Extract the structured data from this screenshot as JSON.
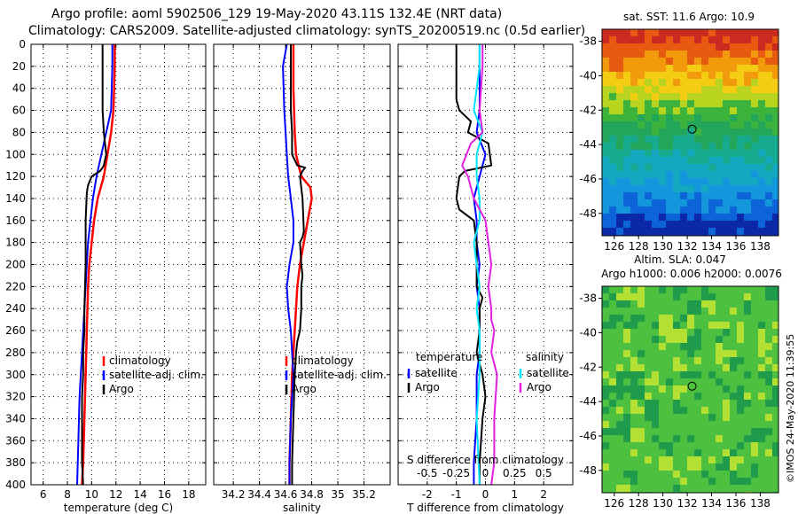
{
  "header": {
    "line1": "Argo profile: aoml 5902506_129 19-May-2020 43.11S 132.4E (NRT data)",
    "line2": "Climatology: CARS2009. Satellite-adjusted climatology: synTS_20200519.nc (0.5d earlier)"
  },
  "side": {
    "vertical_text": "©IMOS 24-May-2020 11:39:55"
  },
  "colors": {
    "climatology": "#ff0000",
    "satellite": "#0000ff",
    "argo": "#000000",
    "sal_satellite": "#00e5ff",
    "sal_argo": "#e020e0"
  },
  "chart_data": [
    {
      "type": "line",
      "id": "temperature",
      "xlabel": "temperature (deg C)",
      "ylabel": "depth",
      "xlim": [
        5,
        19.4
      ],
      "ylim": [
        400,
        0
      ],
      "xticks": [
        6,
        8,
        10,
        12,
        14,
        16,
        18
      ],
      "yticks": [
        0,
        20,
        40,
        60,
        80,
        100,
        120,
        140,
        160,
        180,
        200,
        220,
        240,
        260,
        280,
        300,
        320,
        340,
        360,
        380,
        400
      ],
      "grid": true,
      "legend": [
        {
          "label": "climatology",
          "color": "#ff0000"
        },
        {
          "label": "satellite-adj. clim.",
          "color": "#0000ff"
        },
        {
          "label": "Argo",
          "color": "#000000"
        }
      ],
      "series": [
        {
          "name": "climatology",
          "color": "#ff0000",
          "x": [
            11.9,
            11.9,
            11.8,
            11.6,
            11.3,
            11.0,
            10.5,
            10.2,
            10.0,
            9.8,
            9.7,
            9.6,
            9.5,
            9.4,
            9.3,
            9.2
          ],
          "y": [
            0,
            20,
            60,
            80,
            100,
            120,
            140,
            160,
            180,
            200,
            220,
            260,
            300,
            340,
            380,
            400
          ]
        },
        {
          "name": "satellite-adj. clim.",
          "color": "#0000ff",
          "x": [
            11.7,
            11.7,
            11.6,
            11.2,
            10.8,
            10.4,
            10.1,
            9.9,
            9.7,
            9.6,
            9.5,
            9.4,
            9.3,
            9.2,
            9.0,
            8.9,
            8.8
          ],
          "y": [
            0,
            20,
            60,
            80,
            100,
            120,
            140,
            160,
            180,
            200,
            220,
            240,
            260,
            280,
            320,
            360,
            400
          ]
        },
        {
          "name": "Argo",
          "color": "#000000",
          "x": [
            10.9,
            10.9,
            10.9,
            11.0,
            11.2,
            11.0,
            10.9,
            10.7,
            10.0,
            9.7,
            9.6,
            9.5,
            9.5,
            9.4,
            9.4,
            9.3,
            9.3,
            9.2,
            9.2,
            9.2,
            9.3
          ],
          "y": [
            0,
            20,
            60,
            80,
            100,
            110,
            112,
            115,
            120,
            128,
            135,
            160,
            200,
            240,
            260,
            280,
            300,
            320,
            350,
            380,
            400
          ]
        }
      ]
    },
    {
      "type": "line",
      "id": "salinity",
      "xlabel": "salinity",
      "ylabel": "depth",
      "xlim": [
        34.05,
        35.4
      ],
      "ylim": [
        400,
        0
      ],
      "xticks": [
        34.2,
        34.4,
        34.6,
        34.8,
        35,
        35.2
      ],
      "yticks": [
        0,
        20,
        40,
        60,
        80,
        100,
        120,
        140,
        160,
        180,
        200,
        220,
        240,
        260,
        280,
        300,
        320,
        340,
        360,
        380,
        400
      ],
      "grid": true,
      "legend": [
        {
          "label": "climatology",
          "color": "#ff0000"
        },
        {
          "label": "satellite-adj. clim.",
          "color": "#0000ff"
        },
        {
          "label": "Argo",
          "color": "#000000"
        }
      ],
      "series": [
        {
          "name": "climatology",
          "color": "#ff0000",
          "x": [
            34.66,
            34.66,
            34.67,
            34.68,
            34.72,
            34.79,
            34.8,
            34.77,
            34.74,
            34.71,
            34.69,
            34.68,
            34.67,
            34.66,
            34.65,
            34.64,
            34.63,
            34.63
          ],
          "y": [
            0,
            40,
            80,
            100,
            120,
            130,
            140,
            160,
            180,
            200,
            220,
            240,
            260,
            280,
            300,
            340,
            380,
            400
          ]
        },
        {
          "name": "satellite-adj. clim.",
          "color": "#0000ff",
          "x": [
            34.61,
            34.58,
            34.59,
            34.6,
            34.61,
            34.62,
            34.63,
            34.64,
            34.66,
            34.66,
            34.63,
            34.61,
            34.62,
            34.64,
            34.65,
            34.66,
            34.64,
            34.63,
            34.63
          ],
          "y": [
            0,
            20,
            60,
            80,
            100,
            120,
            130,
            140,
            160,
            180,
            200,
            220,
            240,
            260,
            280,
            300,
            340,
            380,
            400
          ]
        },
        {
          "name": "Argo",
          "color": "#000000",
          "x": [
            34.64,
            34.64,
            34.64,
            34.65,
            34.65,
            34.69,
            34.75,
            34.73,
            34.71,
            34.73,
            34.74,
            34.73,
            34.71,
            34.72,
            34.73,
            34.72,
            34.72,
            34.71,
            34.7,
            34.69,
            34.68,
            34.67,
            34.66,
            34.65,
            34.65
          ],
          "y": [
            0,
            20,
            60,
            80,
            100,
            110,
            112,
            115,
            120,
            140,
            170,
            175,
            180,
            200,
            210,
            220,
            240,
            260,
            265,
            270,
            280,
            300,
            340,
            380,
            400
          ]
        }
      ]
    },
    {
      "type": "line",
      "id": "difference",
      "xlabel": "T difference from climatology",
      "top_axis_label": "S difference from climatology",
      "ylabel": "depth",
      "xlim": [
        -3,
        3
      ],
      "ylim": [
        400,
        0
      ],
      "xticks": [
        -2,
        -1,
        0,
        1,
        2
      ],
      "top_ticks": [
        {
          "label": "-0.5",
          "t": -2
        },
        {
          "label": "-0.25",
          "t": -1
        },
        {
          "label": "0",
          "t": 0
        },
        {
          "label": "0.25",
          "t": 1
        },
        {
          "label": "0.5",
          "t": 2
        }
      ],
      "yticks": [
        0,
        20,
        40,
        60,
        80,
        100,
        120,
        140,
        160,
        180,
        200,
        220,
        240,
        260,
        280,
        300,
        320,
        340,
        360,
        380,
        400
      ],
      "grid": true,
      "legend_temperature": {
        "title": "temperature",
        "items": [
          {
            "label": "satellite",
            "color": "#0000ff"
          },
          {
            "label": "Argo",
            "color": "#000000"
          }
        ]
      },
      "legend_salinity": {
        "title": "salinity",
        "items": [
          {
            "label": "satellite",
            "color": "#00e5ff"
          },
          {
            "label": "Argo",
            "color": "#e020e0"
          }
        ]
      },
      "series": [
        {
          "name": "temperature satellite",
          "color": "#0000ff",
          "x": [
            -0.2,
            -0.2,
            -0.2,
            -0.3,
            0.0,
            -0.2,
            -0.4,
            -0.3,
            -0.3,
            -0.2,
            -0.3,
            -0.2,
            -0.2,
            -0.2,
            -0.3,
            -0.3,
            -0.4,
            -0.4
          ],
          "y": [
            0,
            20,
            60,
            80,
            100,
            120,
            140,
            160,
            180,
            200,
            220,
            240,
            260,
            280,
            300,
            340,
            380,
            400
          ]
        },
        {
          "name": "temperature Argo",
          "color": "#000000",
          "x": [
            -1.0,
            -1.0,
            -1.0,
            -0.9,
            -0.5,
            -0.6,
            0.1,
            0.2,
            -0.7,
            -0.9,
            -1.0,
            -0.9,
            -0.4,
            -0.3,
            -0.3,
            -0.3,
            -0.1,
            -0.2,
            -0.2,
            -0.2,
            -0.3,
            -0.1,
            0.0,
            -0.1,
            -0.2,
            -0.2
          ],
          "y": [
            0,
            20,
            50,
            60,
            70,
            80,
            90,
            110,
            115,
            120,
            140,
            150,
            160,
            180,
            200,
            220,
            230,
            240,
            250,
            260,
            280,
            300,
            320,
            340,
            380,
            400
          ]
        },
        {
          "name": "salinity satellite",
          "color": "#00e5ff",
          "x": [
            -0.2,
            -0.2,
            -0.4,
            -0.1,
            -0.3,
            -0.3,
            -0.2,
            -0.2,
            -0.4,
            -0.3,
            -0.2,
            -0.3,
            -0.2,
            -0.2,
            -0.3,
            -0.2
          ],
          "y": [
            0,
            20,
            60,
            80,
            100,
            120,
            140,
            160,
            180,
            200,
            220,
            240,
            260,
            300,
            340,
            400
          ]
        },
        {
          "name": "salinity Argo",
          "color": "#e020e0",
          "x": [
            -0.1,
            -0.1,
            -0.2,
            -0.1,
            -0.5,
            -0.8,
            -0.6,
            -0.5,
            -0.4,
            0.0,
            0.1,
            0.2,
            0.1,
            0.2,
            0.2,
            0.3,
            0.2,
            0.4,
            0.3,
            0.3,
            0.2
          ],
          "y": [
            0,
            20,
            60,
            80,
            90,
            110,
            120,
            130,
            140,
            160,
            180,
            200,
            220,
            240,
            250,
            260,
            280,
            300,
            340,
            380,
            400
          ]
        }
      ]
    },
    {
      "type": "heatmap",
      "id": "sst_map",
      "title": "sat. SST: 11.6 Argo: 10.9",
      "xlim": [
        125,
        139.5
      ],
      "ylim": [
        -49.3,
        -37.3
      ],
      "xticks": [
        126,
        128,
        130,
        132,
        134,
        136,
        138
      ],
      "yticks": [
        -38,
        -40,
        -42,
        -44,
        -46,
        -48
      ],
      "float_position": {
        "lon": 132.4,
        "lat": -43.11
      },
      "colors": {
        "row_bands": [
          "#cc2a20",
          "#e85a12",
          "#f29a0c",
          "#f4cc14",
          "#b8d41e",
          "#3cb43c",
          "#22a65a",
          "#18aa8e",
          "#14a8c0",
          "#1496dc",
          "#0c64d8",
          "#0a28a8"
        ],
        "band_latitudes": [
          -37.5,
          -38.5,
          -39.5,
          -40.3,
          -41.2,
          -42.2,
          -43.3,
          -44.3,
          -45.5,
          -46.8,
          -48.0,
          -49.0
        ]
      }
    },
    {
      "type": "heatmap",
      "id": "sla_map",
      "title": "Altim. SLA: 0.047",
      "subtitle": "Argo h1000: 0.006 h2000: 0.0076",
      "xlim": [
        125,
        139.5
      ],
      "ylim": [
        -49.3,
        -37.3
      ],
      "xticks": [
        126,
        128,
        130,
        132,
        134,
        136,
        138
      ],
      "yticks": [
        -38,
        -40,
        -42,
        -44,
        -46,
        -48
      ],
      "float_position": {
        "lon": 132.4,
        "lat": -43.11
      },
      "colors": {
        "base": "#4ec040",
        "light": "#b4e034",
        "dark": "#1e9c4c"
      }
    }
  ]
}
